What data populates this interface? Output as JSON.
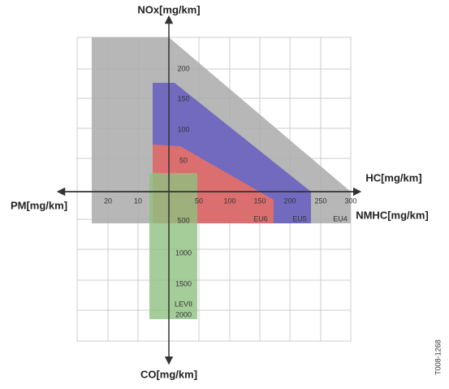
{
  "axes": {
    "nox": "NOx[mg/km]",
    "hc": "HC[mg/km]",
    "pm": "PM[mg/km]",
    "nmhc": "NMHC[mg/km]",
    "co": "CO[mg/km]"
  },
  "nox_ticks": [
    "200",
    "150",
    "100",
    "50"
  ],
  "hc_ticks": [
    "50",
    "100",
    "150",
    "200",
    "250",
    "300"
  ],
  "pm_ticks": [
    "20",
    "10"
  ],
  "co_ticks": [
    "500",
    "1000",
    "1500",
    "2000"
  ],
  "regions": [
    "EU6",
    "EU5",
    "EU4",
    "LEVII"
  ],
  "code": "T008-1268"
}
